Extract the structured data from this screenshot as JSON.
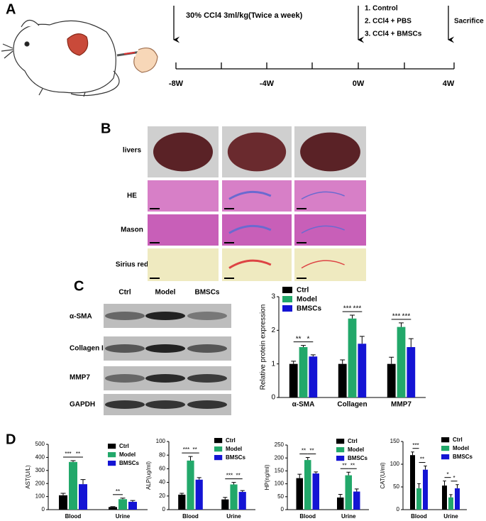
{
  "panel_labels": [
    "A",
    "B",
    "C",
    "D"
  ],
  "timeline": {
    "dose": "30% CCl4 3ml/kg(Twice a week)",
    "groups": [
      "1. Control",
      "2. CCl4 + PBS",
      "3. CCl4 + BMSCs"
    ],
    "end": "Sacrifice",
    "ticks": [
      "-8W",
      "-4W",
      "0W",
      "4W"
    ]
  },
  "histology": {
    "rows": [
      "livers",
      "HE",
      "Mason",
      "Sirius red"
    ]
  },
  "western_blot": {
    "columns": [
      "Ctrl",
      "Model",
      "BMSCs"
    ],
    "rows": [
      "α-SMA",
      "Collagen I",
      "MMP7",
      "GAPDH"
    ]
  },
  "chart_data": [
    {
      "type": "bar",
      "y_label": "Relative protein expression",
      "categories": [
        "α-SMA",
        "Collagen",
        "MMP7"
      ],
      "series": [
        {
          "name": "Ctrl",
          "color": "#000000",
          "values": [
            1.0,
            1.0,
            1.0
          ],
          "errors": [
            0.08,
            0.12,
            0.2
          ]
        },
        {
          "name": "Model",
          "color": "#22a86a",
          "values": [
            1.5,
            2.35,
            2.1
          ],
          "errors": [
            0.05,
            0.1,
            0.12
          ]
        },
        {
          "name": "BMSCs",
          "color": "#1414d4",
          "values": [
            1.22,
            1.6,
            1.5
          ],
          "errors": [
            0.05,
            0.22,
            0.25
          ]
        }
      ],
      "significance": [
        [
          "**",
          "*"
        ],
        [
          "***",
          "***"
        ],
        [
          "***",
          "***"
        ]
      ],
      "ylim": [
        0,
        3
      ],
      "yticks": [
        0,
        1,
        2,
        3
      ]
    },
    {
      "type": "bar",
      "y_label": "AST(U/L)",
      "categories": [
        "Blood",
        "Urine"
      ],
      "series": [
        {
          "name": "Ctrl",
          "color": "#000000",
          "values": [
            110,
            20
          ],
          "errors": [
            15,
            3
          ]
        },
        {
          "name": "Model",
          "color": "#22a86a",
          "values": [
            365,
            80
          ],
          "errors": [
            10,
            8
          ]
        },
        {
          "name": "BMSCs",
          "color": "#1414d4",
          "values": [
            195,
            60
          ],
          "errors": [
            35,
            10
          ]
        }
      ],
      "significance": [
        [
          "***",
          "**"
        ],
        [
          "**",
          null
        ]
      ],
      "ylim": [
        0,
        500
      ],
      "yticks": [
        0,
        100,
        200,
        300,
        400,
        500
      ]
    },
    {
      "type": "bar",
      "y_label": "ALP(ug/ml)",
      "categories": [
        "Blood",
        "Urine"
      ],
      "series": [
        {
          "name": "Ctrl",
          "color": "#000000",
          "values": [
            22,
            15
          ],
          "errors": [
            2,
            3
          ]
        },
        {
          "name": "Model",
          "color": "#22a86a",
          "values": [
            72,
            37
          ],
          "errors": [
            6,
            3
          ]
        },
        {
          "name": "BMSCs",
          "color": "#1414d4",
          "values": [
            44,
            26
          ],
          "errors": [
            3,
            2
          ]
        }
      ],
      "significance": [
        [
          "***",
          "**"
        ],
        [
          "***",
          "**"
        ]
      ],
      "ylim": [
        0,
        100
      ],
      "yticks": [
        0,
        20,
        40,
        60,
        80,
        100
      ]
    },
    {
      "type": "bar",
      "y_label": "HP(ng/ml)",
      "categories": [
        "Blood",
        "Urine"
      ],
      "series": [
        {
          "name": "Ctrl",
          "color": "#000000",
          "values": [
            122,
            47
          ],
          "errors": [
            15,
            12
          ]
        },
        {
          "name": "Model",
          "color": "#22a86a",
          "values": [
            192,
            133
          ],
          "errors": [
            10,
            12
          ]
        },
        {
          "name": "BMSCs",
          "color": "#1414d4",
          "values": [
            140,
            70
          ],
          "errors": [
            6,
            10
          ]
        }
      ],
      "significance": [
        [
          "**",
          "**"
        ],
        [
          "**",
          "**"
        ]
      ],
      "ylim": [
        0,
        250
      ],
      "yticks": [
        0,
        50,
        100,
        150,
        200,
        250
      ]
    },
    {
      "type": "bar",
      "y_label": "CAT(U/ml)",
      "categories": [
        "Blood",
        "Urine"
      ],
      "series": [
        {
          "name": "Ctrl",
          "color": "#000000",
          "values": [
            120,
            53
          ],
          "errors": [
            7,
            10
          ]
        },
        {
          "name": "Model",
          "color": "#22a86a",
          "values": [
            47,
            27
          ],
          "errors": [
            10,
            6
          ]
        },
        {
          "name": "BMSCs",
          "color": "#1414d4",
          "values": [
            88,
            47
          ],
          "errors": [
            8,
            8
          ]
        }
      ],
      "significance": [
        [
          "***",
          "**"
        ],
        [
          "*",
          "*"
        ]
      ],
      "ylim": [
        0,
        150
      ],
      "yticks": [
        0,
        50,
        100,
        150
      ]
    }
  ]
}
